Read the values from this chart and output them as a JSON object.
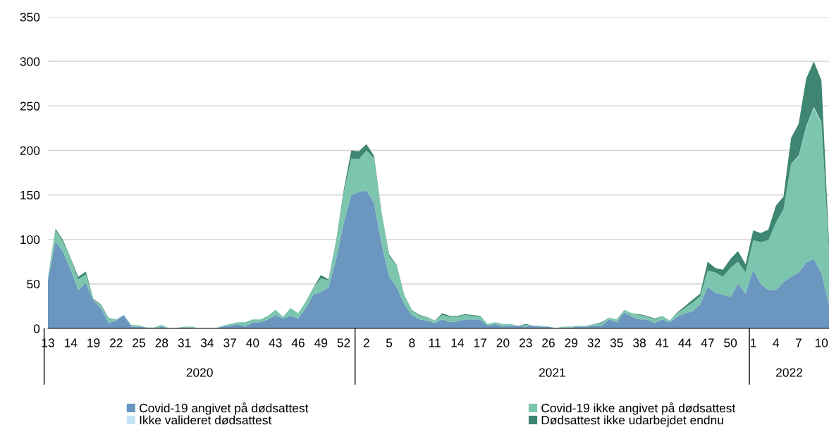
{
  "chart_data": {
    "type": "area",
    "stacked": true,
    "categories": [
      "13",
      null,
      null,
      "14",
      null,
      null,
      "19",
      null,
      null,
      "22",
      null,
      null,
      "25",
      null,
      null,
      "28",
      null,
      null,
      "31",
      null,
      null,
      "34",
      null,
      null,
      "37",
      null,
      null,
      "40",
      null,
      null,
      "43",
      null,
      null,
      "46",
      null,
      null,
      "49",
      null,
      null,
      "52",
      null,
      null,
      "2",
      null,
      null,
      "5",
      null,
      null,
      "8",
      null,
      null,
      "11",
      null,
      null,
      "14",
      null,
      null,
      "17",
      null,
      null,
      "20",
      null,
      null,
      "23",
      null,
      null,
      "26",
      null,
      null,
      "29",
      null,
      null,
      "32",
      null,
      null,
      "35",
      null,
      null,
      "38",
      null,
      null,
      "41",
      null,
      null,
      "44",
      null,
      null,
      "47",
      null,
      null,
      "50",
      null,
      null,
      "1",
      null,
      null,
      "4",
      null,
      null,
      "7",
      null,
      null,
      "10",
      null
    ],
    "series": [
      {
        "name": "Covid-19 angivet på dødsattest",
        "color": "#6a96c0",
        "values": [
          54,
          98,
          86,
          66,
          43,
          51,
          31,
          23,
          6,
          9,
          15,
          2,
          2,
          1,
          0,
          2,
          0,
          0.5,
          1,
          1,
          0,
          0,
          0,
          2,
          3,
          5,
          2,
          7,
          7,
          10,
          15,
          11,
          14,
          11,
          23,
          38,
          41,
          46,
          78,
          118,
          150,
          153,
          155,
          141,
          95,
          58,
          46,
          27,
          15,
          10,
          9,
          6,
          10,
          7,
          8,
          10,
          10,
          10,
          3,
          5,
          2,
          3,
          3,
          2,
          3,
          2,
          2,
          0,
          1,
          1,
          2,
          2,
          3,
          3,
          10,
          7,
          18,
          13,
          10,
          10,
          6,
          10,
          7,
          13,
          17,
          19,
          27,
          47,
          40,
          38,
          35,
          50,
          39,
          66,
          50,
          43,
          43,
          52,
          58,
          63,
          74,
          78,
          62,
          27
        ]
      },
      {
        "name": "Covid-19 ikke angivet på dødsattest",
        "color": "#7cc5ae",
        "values": [
          3,
          12,
          11,
          12,
          12,
          10,
          1,
          3,
          6,
          1,
          0,
          2,
          1.5,
          0,
          1,
          2,
          0,
          0,
          1,
          1,
          0,
          0.5,
          0,
          1,
          2,
          2,
          5,
          3,
          3,
          4,
          6,
          2,
          9,
          6,
          7,
          8,
          15,
          8,
          18,
          34,
          41,
          37,
          45,
          50,
          34,
          23,
          24,
          9,
          6,
          4,
          4,
          3,
          5,
          6,
          5,
          5,
          4,
          3,
          2,
          2,
          3,
          2,
          0,
          2,
          0,
          1,
          0,
          0.5,
          1,
          1,
          1,
          1,
          2,
          3,
          2,
          3,
          3,
          4,
          5,
          3,
          4,
          4,
          2,
          4,
          6,
          10,
          9,
          18,
          23,
          20,
          33,
          25,
          24,
          33,
          47,
          56,
          76,
          82,
          127,
          130,
          152,
          170,
          169,
          60
        ]
      },
      {
        "name": "Ikke valideret dødsattest",
        "color": "#c5e3f5",
        "values": [
          0,
          0,
          0,
          0,
          0,
          0,
          0,
          0,
          0,
          0,
          0,
          0,
          0,
          0,
          0,
          0,
          0,
          0,
          0,
          0,
          0,
          0,
          0,
          0,
          0,
          0,
          0,
          0,
          0,
          0,
          0,
          0,
          0,
          0,
          0,
          0,
          0,
          0,
          0,
          0,
          0,
          0,
          0,
          0,
          0,
          0,
          0,
          0,
          0,
          0,
          0,
          0,
          0,
          0,
          0,
          0,
          0,
          0,
          0,
          0,
          0,
          0,
          0,
          0,
          0,
          0,
          0,
          0,
          0,
          0,
          0,
          0,
          0,
          0,
          0,
          0,
          0,
          0,
          0,
          0,
          0,
          0,
          0,
          0,
          0,
          0,
          0,
          0,
          0,
          0,
          0,
          0,
          0,
          0,
          0,
          0,
          0,
          0,
          0,
          1,
          1,
          1,
          1,
          0
        ]
      },
      {
        "name": "Dødsattest ikke udarbejdet endnu",
        "color": "#3e8671",
        "values": [
          0,
          2,
          2,
          1,
          3,
          3,
          1,
          1,
          0,
          0,
          0,
          0,
          0,
          0,
          0,
          0,
          0,
          0,
          0,
          0,
          0,
          0,
          0,
          0,
          0,
          0,
          0,
          0,
          0,
          0,
          0,
          0,
          0,
          0,
          0,
          0,
          4,
          1,
          2,
          3,
          9,
          9,
          7,
          3,
          1,
          2,
          1,
          1,
          0,
          1,
          0,
          0,
          2,
          1,
          1,
          1,
          1,
          1,
          0,
          0,
          0,
          0,
          0,
          1,
          0,
          0,
          0,
          0,
          0,
          0,
          0,
          0,
          0,
          1,
          0,
          0,
          0,
          0,
          1,
          1,
          1,
          0,
          0,
          1,
          2,
          3,
          3,
          10,
          5,
          8,
          10,
          12,
          9,
          11,
          10,
          12,
          19,
          14,
          29,
          36,
          54,
          51,
          47,
          10
        ]
      }
    ],
    "ylim": [
      0,
      350
    ],
    "yticks": [
      0,
      50,
      100,
      150,
      200,
      250,
      300,
      350
    ],
    "annotations": [
      "2020",
      "2021",
      "2022"
    ],
    "grid": "y",
    "legend": "bottom"
  }
}
